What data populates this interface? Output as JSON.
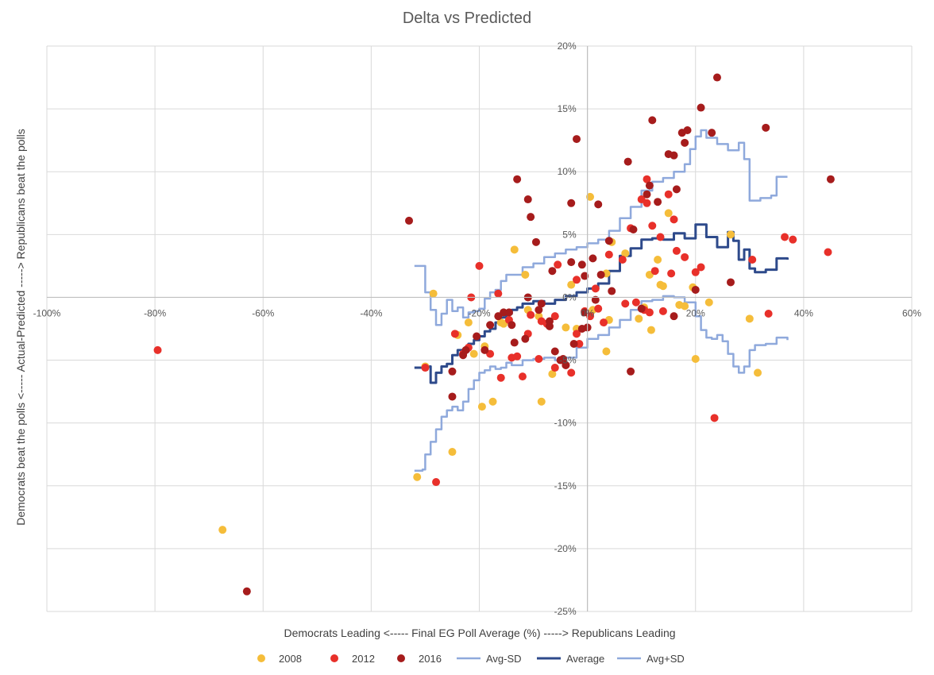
{
  "chart_data": {
    "type": "scatter",
    "title": "Delta vs Predicted",
    "xlabel": "Democrats Leading <----- Final EG Poll Average (%) -----> Republicans Leading",
    "ylabel": "Democrats  beat the polls <----- Actual-Predicted -----> Republicans beat the polls",
    "xlim": [
      -100,
      60
    ],
    "ylim": [
      -25,
      20
    ],
    "x_ticks": [
      "-100%",
      "-80%",
      "-60%",
      "-40%",
      "-20%",
      "0%",
      "20%",
      "40%",
      "60%"
    ],
    "y_ticks": [
      "20%",
      "15%",
      "10%",
      "5%",
      "0%",
      "-5%",
      "-10%",
      "-15%",
      "-20%",
      "-25%"
    ],
    "grid": true,
    "legend_position": "bottom",
    "series": [
      {
        "name": "2008",
        "kind": "scatter",
        "color": "#F5BD3A",
        "points": [
          [
            -31.5,
            -14.3
          ],
          [
            -25,
            -12.3
          ],
          [
            -67.5,
            -18.5
          ],
          [
            -30,
            -5.5
          ],
          [
            -28.5,
            0.3
          ],
          [
            -22,
            -2
          ],
          [
            -21,
            -4.5
          ],
          [
            -19,
            -3.9
          ],
          [
            -16,
            -2
          ],
          [
            -15.5,
            -2.1
          ],
          [
            -17.5,
            -8.3
          ],
          [
            -19.5,
            -8.7
          ],
          [
            -13.5,
            3.8
          ],
          [
            -11.5,
            1.8
          ],
          [
            -8.5,
            -8.3
          ],
          [
            -6.5,
            -6.1
          ],
          [
            -4,
            -2.4
          ],
          [
            -2,
            -2.5
          ],
          [
            0.5,
            8
          ],
          [
            1,
            -1
          ],
          [
            3.5,
            1.9
          ],
          [
            3.5,
            -4.3
          ],
          [
            4,
            -1.8
          ],
          [
            4.5,
            4.4
          ],
          [
            9.5,
            -1.7
          ],
          [
            10.5,
            -0.8
          ],
          [
            11.5,
            1.8
          ],
          [
            11.8,
            -2.6
          ],
          [
            13,
            3
          ],
          [
            13.5,
            1
          ],
          [
            14,
            0.9
          ],
          [
            15,
            6.7
          ],
          [
            17,
            -0.6
          ],
          [
            18,
            -0.7
          ],
          [
            19.5,
            0.8
          ],
          [
            20,
            -4.9
          ],
          [
            22.5,
            -0.4
          ],
          [
            26.5,
            5
          ],
          [
            30,
            -1.7
          ],
          [
            31.5,
            -6
          ],
          [
            -24,
            -3
          ],
          [
            -11,
            -1
          ],
          [
            -9,
            -1.5
          ],
          [
            -3,
            1
          ],
          [
            7,
            3.5
          ]
        ]
      },
      {
        "name": "2012",
        "kind": "scatter",
        "color": "#E8302A",
        "points": [
          [
            -79.5,
            -4.2
          ],
          [
            -28,
            -14.7
          ],
          [
            -30,
            -5.6
          ],
          [
            -24.5,
            -2.9
          ],
          [
            -23,
            -4.5
          ],
          [
            -22,
            -4
          ],
          [
            -21.5,
            0
          ],
          [
            -20,
            2.5
          ],
          [
            -18,
            -4.5
          ],
          [
            -16.5,
            0.3
          ],
          [
            -14.5,
            -1.8
          ],
          [
            -13,
            -4.7
          ],
          [
            -12,
            -6.3
          ],
          [
            -11,
            -2.9
          ],
          [
            -10.5,
            -1.4
          ],
          [
            -8.5,
            -1.9
          ],
          [
            -7.5,
            -2.1
          ],
          [
            -6,
            -1.5
          ],
          [
            -5.5,
            2.6
          ],
          [
            -4,
            -5.4
          ],
          [
            -3,
            -6
          ],
          [
            -2,
            1.4
          ],
          [
            -1.5,
            -3.7
          ],
          [
            -0.5,
            -1.1
          ],
          [
            0.5,
            -1.5
          ],
          [
            1.5,
            0.7
          ],
          [
            2,
            -0.9
          ],
          [
            4,
            3.4
          ],
          [
            6.5,
            3
          ],
          [
            8,
            5.5
          ],
          [
            9,
            -0.4
          ],
          [
            10.5,
            -1
          ],
          [
            11,
            7.5
          ],
          [
            11,
            9.4
          ],
          [
            11.5,
            -1.2
          ],
          [
            12,
            5.7
          ],
          [
            12.5,
            2.1
          ],
          [
            13.5,
            4.8
          ],
          [
            14,
            -1.1
          ],
          [
            15,
            8.2
          ],
          [
            15.5,
            1.9
          ],
          [
            16,
            6.2
          ],
          [
            16.5,
            3.7
          ],
          [
            18,
            3.2
          ],
          [
            20,
            2
          ],
          [
            21,
            2.4
          ],
          [
            23.5,
            -9.6
          ],
          [
            30.5,
            3
          ],
          [
            33.5,
            -1.3
          ],
          [
            36.5,
            4.8
          ],
          [
            38,
            4.6
          ],
          [
            44.5,
            3.6
          ],
          [
            -6,
            -5.6
          ],
          [
            -16,
            -6.4
          ],
          [
            -9,
            -4.9
          ],
          [
            -14,
            -4.8
          ],
          [
            -2,
            -2.9
          ],
          [
            3,
            -2
          ],
          [
            7,
            -0.5
          ],
          [
            10,
            7.8
          ]
        ]
      },
      {
        "name": "2016",
        "kind": "scatter",
        "color": "#A61C1C",
        "points": [
          [
            -33,
            6.1
          ],
          [
            -63,
            -23.4
          ],
          [
            -25,
            -7.9
          ],
          [
            -25,
            -5.9
          ],
          [
            -23,
            -4.6
          ],
          [
            -22.5,
            -4.2
          ],
          [
            -20.5,
            -3.1
          ],
          [
            -18,
            -2.2
          ],
          [
            -16.5,
            -1.5
          ],
          [
            -15.5,
            -1.2
          ],
          [
            -14,
            -2.2
          ],
          [
            -14.5,
            -1.2
          ],
          [
            -13.5,
            -3.6
          ],
          [
            -13,
            9.4
          ],
          [
            -11.5,
            -3.3
          ],
          [
            -11,
            0
          ],
          [
            -11,
            7.8
          ],
          [
            -10.5,
            6.4
          ],
          [
            -9.5,
            4.4
          ],
          [
            -8.5,
            -0.5
          ],
          [
            -7,
            -1.9
          ],
          [
            -7,
            -2.3
          ],
          [
            -6.5,
            2.1
          ],
          [
            -6,
            -4.3
          ],
          [
            -5,
            -5
          ],
          [
            -4.5,
            -4.9
          ],
          [
            -4,
            -5.4
          ],
          [
            -3,
            2.8
          ],
          [
            -2.5,
            -3.7
          ],
          [
            -1,
            2.6
          ],
          [
            -0.5,
            1.7
          ],
          [
            -0.5,
            -1.2
          ],
          [
            -1,
            -2.5
          ],
          [
            0,
            -2.4
          ],
          [
            1,
            3.1
          ],
          [
            1.5,
            -0.2
          ],
          [
            2,
            7.4
          ],
          [
            2.5,
            1.8
          ],
          [
            4,
            4.5
          ],
          [
            4.5,
            0.5
          ],
          [
            8,
            -5.9
          ],
          [
            8.5,
            5.4
          ],
          [
            10,
            -0.9
          ],
          [
            11,
            8.2
          ],
          [
            11.5,
            8.9
          ],
          [
            12,
            14.1
          ],
          [
            13,
            7.6
          ],
          [
            15,
            11.4
          ],
          [
            16,
            11.3
          ],
          [
            16.5,
            8.6
          ],
          [
            17.5,
            13.1
          ],
          [
            18,
            12.3
          ],
          [
            18.5,
            13.3
          ],
          [
            20,
            0.6
          ],
          [
            21,
            15.1
          ],
          [
            23,
            13.1
          ],
          [
            24,
            17.5
          ],
          [
            26.5,
            1.2
          ],
          [
            33,
            13.5
          ],
          [
            45,
            9.4
          ],
          [
            -2,
            12.6
          ],
          [
            -3,
            7.5
          ],
          [
            7.5,
            10.8
          ],
          [
            16,
            -1.5
          ],
          [
            -19,
            -4.2
          ],
          [
            -9,
            -1
          ]
        ]
      },
      {
        "name": "Avg-SD",
        "kind": "line",
        "color": "#8FA9DC",
        "points": [
          [
            -32,
            -13.8
          ],
          [
            -30.5,
            -13.7
          ],
          [
            -30,
            -12.5
          ],
          [
            -29,
            -11.5
          ],
          [
            -28,
            -10.5
          ],
          [
            -27,
            -9.5
          ],
          [
            -26,
            -9
          ],
          [
            -25,
            -8.7
          ],
          [
            -24,
            -9
          ],
          [
            -23,
            -8.3
          ],
          [
            -22,
            -7.3
          ],
          [
            -21,
            -6.6
          ],
          [
            -20,
            -6
          ],
          [
            -19,
            -5.8
          ],
          [
            -18,
            -5.5
          ],
          [
            -17,
            -5.7
          ],
          [
            -16,
            -5.6
          ],
          [
            -15,
            -5.2
          ],
          [
            -14,
            -5.4
          ],
          [
            -12,
            -5
          ],
          [
            -10,
            -4.9
          ],
          [
            -8,
            -4.8
          ],
          [
            -6,
            -5
          ],
          [
            -4,
            -4.8
          ],
          [
            -2,
            -4
          ],
          [
            0,
            -3.3
          ],
          [
            2,
            -3
          ],
          [
            4,
            -2.4
          ],
          [
            6,
            -1.8
          ],
          [
            8,
            -1
          ],
          [
            10,
            -0.3
          ],
          [
            12,
            -0.2
          ],
          [
            14,
            0.1
          ],
          [
            16,
            0
          ],
          [
            18,
            -0.4
          ],
          [
            20,
            -1.5
          ],
          [
            21,
            -2.6
          ],
          [
            22,
            -3.2
          ],
          [
            23,
            -3.3
          ],
          [
            24,
            -3
          ],
          [
            25,
            -3.5
          ],
          [
            26,
            -4.5
          ],
          [
            27,
            -5.5
          ],
          [
            28,
            -6
          ],
          [
            29,
            -5.5
          ],
          [
            30,
            -4.2
          ],
          [
            31,
            -3.8
          ],
          [
            33,
            -3.7
          ],
          [
            35,
            -3.2
          ],
          [
            37,
            -3.4
          ]
        ]
      },
      {
        "name": "Average",
        "kind": "line",
        "color": "#2E4A8B",
        "points": [
          [
            -32,
            -5.6
          ],
          [
            -30,
            -5.5
          ],
          [
            -29,
            -6.8
          ],
          [
            -28,
            -6
          ],
          [
            -27,
            -5.5
          ],
          [
            -26,
            -5.3
          ],
          [
            -25,
            -4.6
          ],
          [
            -24,
            -4.2
          ],
          [
            -23,
            -4.3
          ],
          [
            -22,
            -3.7
          ],
          [
            -21,
            -3.4
          ],
          [
            -20,
            -3.1
          ],
          [
            -19,
            -2.7
          ],
          [
            -18,
            -2.5
          ],
          [
            -17,
            -2
          ],
          [
            -16,
            -1.6
          ],
          [
            -15,
            -1.3
          ],
          [
            -14,
            -1
          ],
          [
            -13,
            -0.8
          ],
          [
            -12,
            -0.5
          ],
          [
            -10,
            -0.3
          ],
          [
            -8,
            -0.5
          ],
          [
            -6,
            -0.2
          ],
          [
            -4,
            0.1
          ],
          [
            -2,
            0.4
          ],
          [
            0,
            0.7
          ],
          [
            2,
            1.1
          ],
          [
            4,
            2.1
          ],
          [
            6,
            3.3
          ],
          [
            8,
            3.9
          ],
          [
            10,
            4.6
          ],
          [
            12,
            4.7
          ],
          [
            14,
            4.6
          ],
          [
            16,
            5.1
          ],
          [
            18,
            4.7
          ],
          [
            20,
            5.8
          ],
          [
            22,
            4.8
          ],
          [
            24,
            4
          ],
          [
            26,
            5.2
          ],
          [
            27,
            4.5
          ],
          [
            28,
            3
          ],
          [
            29,
            3.8
          ],
          [
            30,
            2.3
          ],
          [
            31,
            2
          ],
          [
            33,
            2.2
          ],
          [
            35,
            3.1
          ],
          [
            37,
            3
          ]
        ]
      },
      {
        "name": "Avg+SD",
        "kind": "line",
        "color": "#8FA9DC",
        "points": [
          [
            -32,
            2.5
          ],
          [
            -30.5,
            2.5
          ],
          [
            -30,
            0.4
          ],
          [
            -29,
            -1
          ],
          [
            -28,
            -2.2
          ],
          [
            -27,
            -1.3
          ],
          [
            -26,
            -0.2
          ],
          [
            -25,
            -1.1
          ],
          [
            -24,
            -0.8
          ],
          [
            -23,
            -1.6
          ],
          [
            -22,
            -1.2
          ],
          [
            -21,
            -1.1
          ],
          [
            -20,
            -0.9
          ],
          [
            -19,
            -0.1
          ],
          [
            -18,
            0.4
          ],
          [
            -17,
            0.6
          ],
          [
            -16,
            1.3
          ],
          [
            -15,
            1.8
          ],
          [
            -14,
            1.8
          ],
          [
            -12,
            2.4
          ],
          [
            -10,
            2.7
          ],
          [
            -8,
            3.2
          ],
          [
            -6,
            3.5
          ],
          [
            -4,
            3.8
          ],
          [
            -2,
            4
          ],
          [
            0,
            4.3
          ],
          [
            2,
            4.6
          ],
          [
            4,
            5.3
          ],
          [
            6,
            6.3
          ],
          [
            8,
            7.2
          ],
          [
            10,
            8.5
          ],
          [
            12,
            9.2
          ],
          [
            14,
            9.5
          ],
          [
            16,
            10
          ],
          [
            18,
            10.6
          ],
          [
            19,
            11.8
          ],
          [
            20,
            12.8
          ],
          [
            21,
            13.3
          ],
          [
            22,
            12.7
          ],
          [
            24,
            12.2
          ],
          [
            26,
            11.7
          ],
          [
            28,
            12.3
          ],
          [
            29,
            11
          ],
          [
            30,
            7.7
          ],
          [
            32,
            7.9
          ],
          [
            34,
            8.1
          ],
          [
            35,
            9.6
          ],
          [
            37,
            9.6
          ]
        ]
      }
    ]
  }
}
